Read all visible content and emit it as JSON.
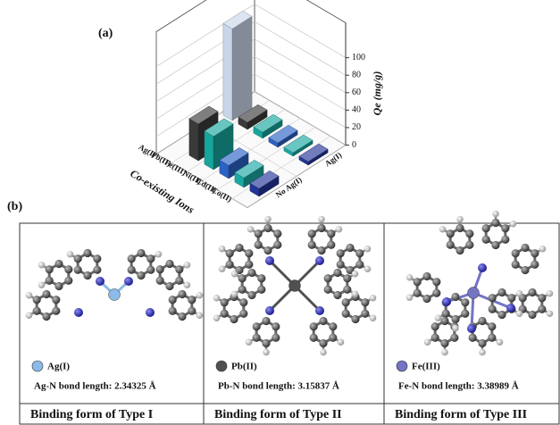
{
  "chart_data": {
    "type": "bar3d",
    "panel_label": "(a)",
    "z_label": "Qe (mg/g)",
    "x_label": "Co-existing Ions",
    "categories": [
      "Ag(I)",
      "Pb(II)",
      "Fe(III)",
      "Ni(II)",
      "Cd(II)",
      "Co(II)"
    ],
    "colors": [
      "#c9d6ea",
      "#3a3a3a",
      "#17a59c",
      "#2b62c4",
      "#1aa8a2",
      "#233596"
    ],
    "series": [
      {
        "name": "Ag(I)",
        "values": [
          105,
          8,
          7,
          5,
          4,
          4
        ]
      },
      {
        "name": "No Ag(I)",
        "values": [
          null,
          42,
          38,
          15,
          11,
          9
        ]
      }
    ],
    "zlim": [
      0,
      140
    ],
    "zticks": [
      0,
      20,
      40,
      60,
      80,
      100
    ],
    "grid": true
  },
  "figure": {
    "panel_label": "(b)",
    "panels": [
      {
        "ion": "Ag(I)",
        "color": "#8cbbe9",
        "bond": "Ag-N bond length: 2.34325 Å",
        "caption": "Binding form of Type I"
      },
      {
        "ion": "Pb(II)",
        "color": "#505050",
        "bond": "Pb-N bond length: 3.15837 Å",
        "caption": "Binding form of Type II"
      },
      {
        "ion": "Fe(III)",
        "color": "#7474c4",
        "bond": "Fe-N bond length: 3.38989 Å",
        "caption": "Binding form of Type III"
      }
    ]
  }
}
